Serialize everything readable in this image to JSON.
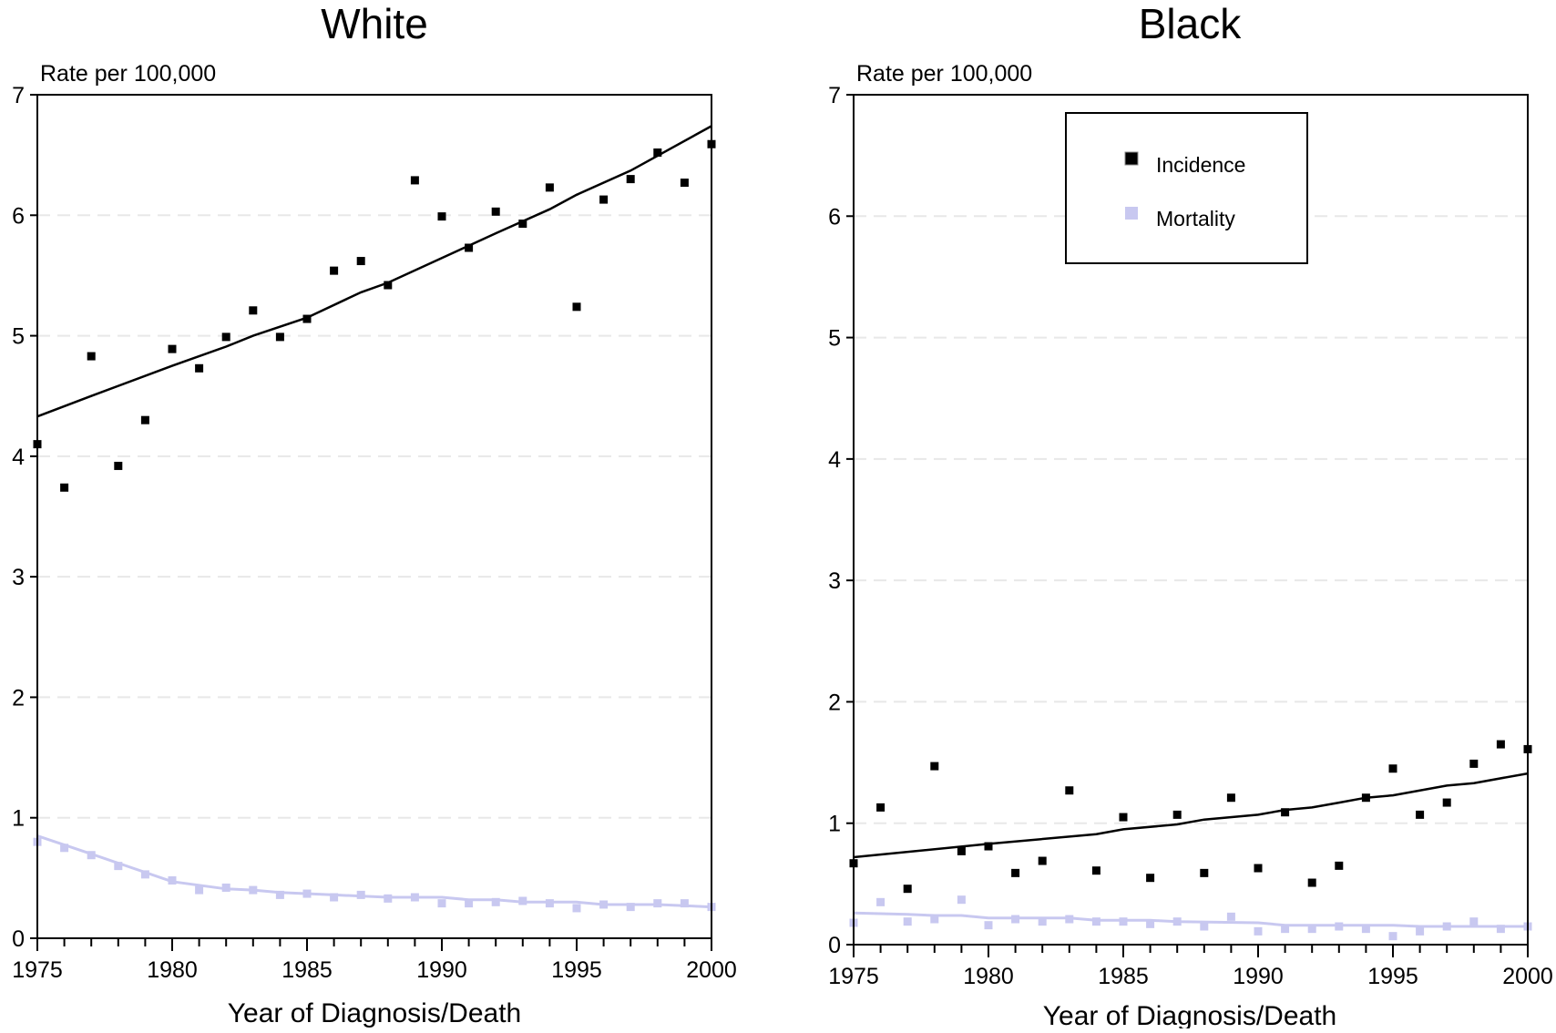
{
  "colors": {
    "incidence": "#000000",
    "mortality": "#c8c8f0",
    "grid": "#e8e8e8"
  },
  "legend": {
    "items": [
      {
        "label": "Incidence",
        "color": "#000000"
      },
      {
        "label": "Mortality",
        "color": "#c8c8f0"
      }
    ]
  },
  "chart_data": [
    {
      "type": "scatter",
      "title": "White",
      "ylabel": "Rate per 100,000",
      "xlabel": "Year of Diagnosis/Death",
      "xlim": [
        1975,
        2000
      ],
      "ylim": [
        0,
        7
      ],
      "xticks": [
        1975,
        1980,
        1985,
        1990,
        1995,
        2000
      ],
      "yticks": [
        0,
        1,
        2,
        3,
        4,
        5,
        6,
        7
      ],
      "grid": "horizontal-dashed",
      "legend": "none",
      "x": [
        1975,
        1976,
        1977,
        1978,
        1979,
        1980,
        1981,
        1982,
        1983,
        1984,
        1985,
        1986,
        1987,
        1988,
        1989,
        1990,
        1991,
        1992,
        1993,
        1994,
        1995,
        1996,
        1997,
        1998,
        1999,
        2000
      ],
      "series": [
        {
          "name": "Incidence",
          "values": [
            4.1,
            3.74,
            4.83,
            3.92,
            4.3,
            4.89,
            4.73,
            4.99,
            5.21,
            4.99,
            5.14,
            5.54,
            5.62,
            5.42,
            6.29,
            5.99,
            5.73,
            6.03,
            5.93,
            6.23,
            5.24,
            6.13,
            6.3,
            6.52,
            6.27,
            6.59
          ],
          "trend": [
            [
              1975,
              4.33
            ],
            [
              1977,
              4.5
            ],
            [
              1980,
              4.75
            ],
            [
              1982,
              4.91
            ],
            [
              1983,
              5.0
            ],
            [
              1985,
              5.15
            ],
            [
              1987,
              5.36
            ],
            [
              1988,
              5.44
            ],
            [
              1992,
              5.85
            ],
            [
              1994,
              6.05
            ],
            [
              1995,
              6.17
            ],
            [
              1997,
              6.37
            ],
            [
              2000,
              6.74
            ]
          ]
        },
        {
          "name": "Mortality",
          "values": [
            0.8,
            0.75,
            0.69,
            0.6,
            0.53,
            0.48,
            0.4,
            0.42,
            0.4,
            0.36,
            0.37,
            0.34,
            0.36,
            0.33,
            0.34,
            0.29,
            0.29,
            0.3,
            0.31,
            0.29,
            0.25,
            0.28,
            0.26,
            0.29,
            0.29,
            0.26
          ],
          "trend": [
            [
              1975,
              0.85
            ],
            [
              1977,
              0.7
            ],
            [
              1980,
              0.47
            ],
            [
              1982,
              0.41
            ],
            [
              1983,
              0.4
            ],
            [
              1984,
              0.38
            ],
            [
              1986,
              0.36
            ],
            [
              1988,
              0.34
            ],
            [
              1990,
              0.34
            ],
            [
              1991,
              0.32
            ],
            [
              1992,
              0.32
            ],
            [
              1993,
              0.3
            ],
            [
              1995,
              0.3
            ],
            [
              1996,
              0.28
            ],
            [
              1998,
              0.28
            ],
            [
              2000,
              0.26
            ]
          ]
        }
      ]
    },
    {
      "type": "scatter",
      "title": "Black",
      "ylabel": "Rate per 100,000",
      "xlabel": "Year of Diagnosis/Death",
      "xlim": [
        1975,
        2000
      ],
      "ylim": [
        0,
        7
      ],
      "xticks": [
        1975,
        1980,
        1985,
        1990,
        1995,
        2000
      ],
      "yticks": [
        0,
        1,
        2,
        3,
        4,
        5,
        6,
        7
      ],
      "grid": "horizontal-dashed",
      "legend": "top-center",
      "x": [
        1975,
        1976,
        1977,
        1978,
        1979,
        1980,
        1981,
        1982,
        1983,
        1984,
        1985,
        1986,
        1987,
        1988,
        1989,
        1990,
        1991,
        1992,
        1993,
        1994,
        1995,
        1996,
        1997,
        1998,
        1999,
        2000
      ],
      "series": [
        {
          "name": "Incidence",
          "values": [
            0.67,
            1.13,
            0.46,
            1.47,
            0.77,
            0.81,
            0.59,
            0.69,
            1.27,
            0.61,
            1.05,
            0.55,
            1.07,
            0.59,
            1.21,
            0.63,
            1.09,
            0.51,
            0.65,
            1.21,
            1.45,
            1.07,
            1.17,
            1.49,
            1.65,
            1.61
          ],
          "trend": [
            [
              1975,
              0.72
            ],
            [
              1980,
              0.83
            ],
            [
              1984,
              0.91
            ],
            [
              1985,
              0.95
            ],
            [
              1987,
              0.99
            ],
            [
              1988,
              1.03
            ],
            [
              1990,
              1.07
            ],
            [
              1991,
              1.11
            ],
            [
              1992,
              1.13
            ],
            [
              1993,
              1.17
            ],
            [
              1994,
              1.21
            ],
            [
              1995,
              1.23
            ],
            [
              1997,
              1.31
            ],
            [
              1998,
              1.33
            ],
            [
              2000,
              1.41
            ]
          ]
        },
        {
          "name": "Mortality",
          "values": [
            0.18,
            0.35,
            0.19,
            0.21,
            0.37,
            0.16,
            0.21,
            0.19,
            0.21,
            0.19,
            0.19,
            0.17,
            0.19,
            0.15,
            0.23,
            0.11,
            0.13,
            0.13,
            0.15,
            0.13,
            0.07,
            0.11,
            0.15,
            0.19,
            0.13,
            0.15
          ],
          "trend": [
            [
              1975,
              0.26
            ],
            [
              1977,
              0.25
            ],
            [
              1978,
              0.24
            ],
            [
              1979,
              0.24
            ],
            [
              1980,
              0.22
            ],
            [
              1983,
              0.22
            ],
            [
              1984,
              0.2
            ],
            [
              1986,
              0.2
            ],
            [
              1987,
              0.19
            ],
            [
              1990,
              0.18
            ],
            [
              1991,
              0.16
            ],
            [
              1995,
              0.16
            ],
            [
              1996,
              0.15
            ],
            [
              2000,
              0.15
            ]
          ]
        }
      ]
    }
  ]
}
